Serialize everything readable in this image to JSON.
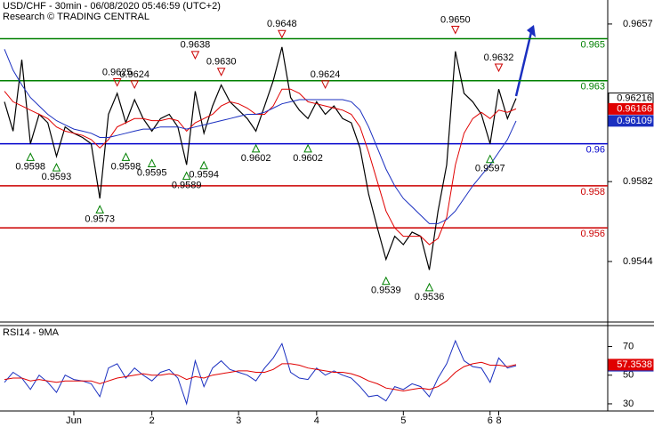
{
  "chart_data": [
    {
      "type": "line",
      "title": "USD/CHF - 30min - 06/08/2020 05:46:59 (UTC+2)",
      "subtitle": "Research © TRADING CENTRAL",
      "ylim": [
        0.95152,
        0.96684
      ],
      "yticks": [
        0.9657,
        0.9582,
        0.9544
      ],
      "categories": [
        null,
        null,
        null,
        null,
        null,
        null,
        null,
        null,
        "Jun",
        null,
        null,
        null,
        null,
        null,
        null,
        null,
        null,
        "2",
        null,
        null,
        null,
        null,
        null,
        null,
        null,
        null,
        null,
        "3",
        null,
        null,
        null,
        null,
        null,
        null,
        null,
        null,
        "4",
        null,
        null,
        null,
        null,
        null,
        null,
        null,
        null,
        null,
        "5",
        null,
        null,
        null,
        null,
        null,
        null,
        null,
        null,
        null,
        "6",
        "8",
        null,
        null
      ],
      "series": [
        {
          "color": "#000000",
          "last_label": "0.96216",
          "values": [
            0.962,
            0.9606,
            0.964,
            0.96,
            0.9614,
            0.961,
            0.9594,
            0.9608,
            0.9605,
            0.9603,
            0.96,
            0.9574,
            0.9614,
            0.9624,
            0.961,
            0.9621,
            0.9612,
            0.9606,
            0.9612,
            0.9614,
            0.9608,
            0.959,
            0.9625,
            0.9605,
            0.9618,
            0.9628,
            0.962,
            0.9616,
            0.9612,
            0.9606,
            0.9618,
            0.963,
            0.9646,
            0.9622,
            0.9616,
            0.9612,
            0.962,
            0.9614,
            0.9618,
            0.9612,
            0.961,
            0.9598,
            0.9576,
            0.956,
            0.9545,
            0.9556,
            0.9552,
            0.9558,
            0.9556,
            0.954,
            0.9568,
            0.959,
            0.9644,
            0.9624,
            0.962,
            0.9614,
            0.96,
            0.9626,
            0.9612,
            0.96216
          ]
        },
        {
          "color": "#e00000",
          "last_label": "0.96166",
          "values": [
            0.9625,
            0.962,
            0.9618,
            0.9616,
            0.9614,
            0.9612,
            0.9608,
            0.9606,
            0.9605,
            0.9604,
            0.9602,
            0.9598,
            0.9602,
            0.9608,
            0.961,
            0.9612,
            0.9612,
            0.9611,
            0.9611,
            0.9612,
            0.9611,
            0.9606,
            0.961,
            0.9612,
            0.9614,
            0.9618,
            0.962,
            0.9619,
            0.9617,
            0.9614,
            0.9614,
            0.9618,
            0.9626,
            0.9626,
            0.9624,
            0.962,
            0.9619,
            0.9618,
            0.9617,
            0.9616,
            0.9614,
            0.9608,
            0.9596,
            0.9582,
            0.9568,
            0.956,
            0.9556,
            0.9556,
            0.9556,
            0.9552,
            0.9555,
            0.9565,
            0.959,
            0.9605,
            0.9612,
            0.9615,
            0.9612,
            0.9616,
            0.9615,
            0.96166
          ]
        },
        {
          "color": "#1a2fc0",
          "last_label": "0.96109",
          "values": [
            0.9645,
            0.9635,
            0.9628,
            0.9622,
            0.9618,
            0.9614,
            0.9611,
            0.9609,
            0.9607,
            0.9606,
            0.9605,
            0.9603,
            0.9603,
            0.9604,
            0.9605,
            0.9606,
            0.9607,
            0.9607,
            0.9608,
            0.9608,
            0.9608,
            0.9607,
            0.9608,
            0.9609,
            0.961,
            0.9611,
            0.9612,
            0.9613,
            0.9614,
            0.9614,
            0.9615,
            0.9617,
            0.9619,
            0.962,
            0.9621,
            0.9621,
            0.9621,
            0.9621,
            0.9621,
            0.9621,
            0.962,
            0.9616,
            0.9608,
            0.9598,
            0.9588,
            0.958,
            0.9574,
            0.957,
            0.9566,
            0.9562,
            0.9562,
            0.9564,
            0.9568,
            0.9574,
            0.958,
            0.9585,
            0.959,
            0.9596,
            0.9602,
            0.96109
          ]
        }
      ],
      "levels": [
        {
          "value": 0.965,
          "color": "#008000"
        },
        {
          "value": 0.963,
          "color": "#008000"
        },
        {
          "value": 0.96,
          "color": "#0000cc"
        },
        {
          "value": 0.958,
          "color": "#cc0000"
        },
        {
          "value": 0.956,
          "color": "#cc0000"
        }
      ],
      "pivot_highs": {
        "color": "#cc0000",
        "values": [
          null,
          null,
          null,
          null,
          null,
          null,
          null,
          null,
          null,
          null,
          null,
          null,
          null,
          0.9625,
          null,
          0.9624,
          null,
          null,
          null,
          null,
          null,
          null,
          0.9638,
          null,
          null,
          0.963,
          null,
          null,
          null,
          null,
          null,
          null,
          0.9648,
          null,
          null,
          null,
          null,
          0.9624,
          null,
          null,
          null,
          null,
          null,
          null,
          null,
          null,
          null,
          null,
          null,
          null,
          null,
          null,
          0.965,
          null,
          null,
          null,
          null,
          0.9632,
          null,
          null
        ],
        "value_labels": [
          null,
          null,
          null,
          null,
          null,
          null,
          null,
          null,
          null,
          null,
          null,
          null,
          null,
          "0.9625",
          null,
          "0.9624",
          null,
          null,
          null,
          null,
          null,
          null,
          "0.9638",
          null,
          null,
          "0.9630",
          null,
          null,
          null,
          null,
          null,
          null,
          "0.9648",
          null,
          null,
          null,
          null,
          "0.9624",
          null,
          null,
          null,
          null,
          null,
          null,
          null,
          null,
          null,
          null,
          null,
          null,
          null,
          null,
          "0.9650",
          null,
          null,
          null,
          null,
          "0.9632",
          null,
          null
        ]
      },
      "pivot_lows": {
        "color": "#008000",
        "values": [
          null,
          null,
          null,
          0.9598,
          null,
          null,
          0.9593,
          null,
          null,
          null,
          null,
          0.9573,
          null,
          null,
          0.9598,
          null,
          null,
          0.9595,
          null,
          null,
          null,
          0.9589,
          null,
          0.9594,
          null,
          null,
          null,
          null,
          null,
          0.9602,
          null,
          null,
          null,
          null,
          null,
          0.9602,
          null,
          null,
          null,
          null,
          null,
          null,
          null,
          null,
          0.9539,
          null,
          null,
          null,
          null,
          0.9536,
          null,
          null,
          null,
          null,
          null,
          null,
          0.9597,
          null,
          null,
          null
        ]
      }
    },
    {
      "type": "line",
      "title": "RSI14 - 9MA",
      "ylim": [
        25,
        84
      ],
      "yticks": [
        70,
        50,
        30
      ],
      "series": [
        {
          "color": "#1a2fc0",
          "last_label": "56.6159",
          "values": [
            45,
            52,
            48,
            40,
            50,
            45,
            38,
            50,
            47,
            46,
            44,
            35,
            55,
            58,
            48,
            55,
            50,
            46,
            52,
            54,
            48,
            30,
            60,
            42,
            55,
            60,
            54,
            52,
            50,
            46,
            55,
            62,
            72,
            52,
            48,
            47,
            55,
            50,
            53,
            50,
            48,
            42,
            35,
            36,
            32,
            42,
            40,
            44,
            42,
            35,
            48,
            58,
            74,
            60,
            56,
            55,
            45,
            62,
            55,
            56.6159
          ]
        },
        {
          "color": "#e00000",
          "last_label": "57.3538",
          "values": [
            47,
            48,
            48,
            46,
            47,
            46,
            45,
            46,
            46,
            46,
            46,
            44,
            46,
            48,
            49,
            50,
            51,
            50,
            50,
            51,
            50,
            47,
            49,
            48,
            50,
            51,
            52,
            53,
            53,
            52,
            52,
            54,
            58,
            58,
            57,
            55,
            54,
            53,
            52,
            52,
            51,
            49,
            46,
            44,
            41,
            40,
            39,
            40,
            41,
            40,
            42,
            46,
            52,
            56,
            58,
            59,
            57,
            57,
            56,
            57.3538
          ]
        }
      ]
    }
  ]
}
